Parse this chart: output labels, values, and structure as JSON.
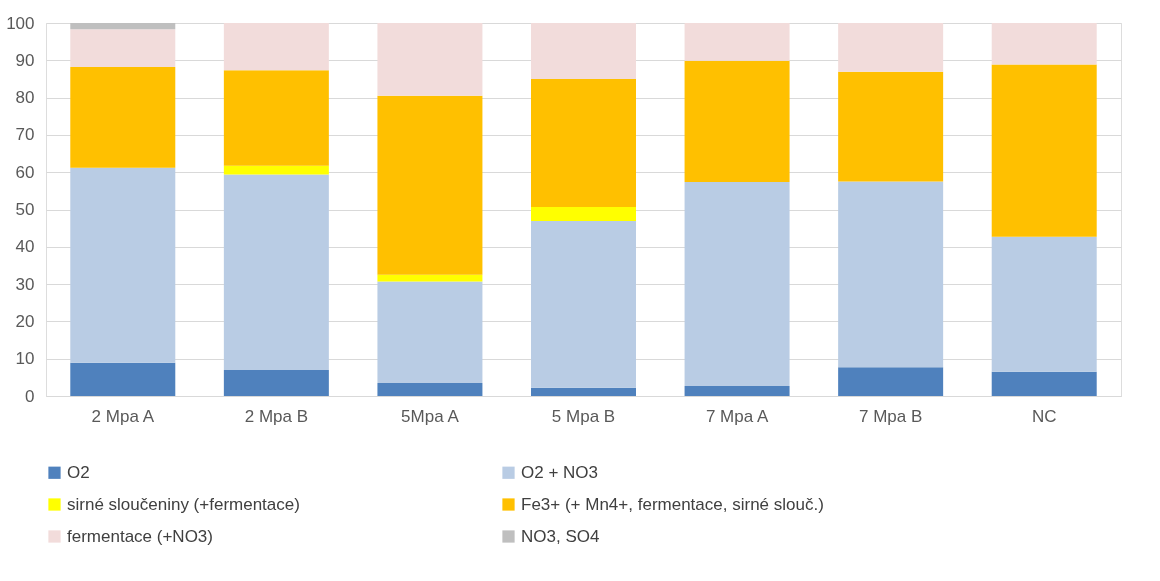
{
  "chart_data": {
    "type": "bar",
    "stacked": true,
    "categories": [
      "2 Mpa A",
      "2 Mpa B",
      "5Mpa A",
      "5 Mpa B",
      "7 Mpa A",
      "7 Mpa B",
      "NC"
    ],
    "series": [
      {
        "name": "O2",
        "color": "#4f81bd",
        "values": [
          8.9,
          7.0,
          3.5,
          2.2,
          2.7,
          7.7,
          6.5
        ]
      },
      {
        "name": "O2 + NO3",
        "color": "#b9cce4",
        "values": [
          52.3,
          52.4,
          27.2,
          44.7,
          54.7,
          49.8,
          36.2
        ]
      },
      {
        "name": "sirné sloučeniny (+fermentace)",
        "color": "#ffff00",
        "values": [
          null,
          2.3,
          1.8,
          3.8,
          null,
          null,
          null
        ]
      },
      {
        "name": "Fe3+ (+ Mn4+, fermentace, sirné slouč.)",
        "color": "#ffc000",
        "values": [
          27.0,
          25.6,
          48.0,
          34.3,
          32.5,
          29.4,
          46.2
        ]
      },
      {
        "name": "fermentace (+NO3)",
        "color": "#f2dcdb",
        "values": [
          10.1,
          12.7,
          19.5,
          15.0,
          10.1,
          13.1,
          11.1
        ]
      },
      {
        "name": "NO3, SO4",
        "color": "#bfbfbf",
        "values": [
          1.7,
          null,
          null,
          null,
          null,
          null,
          null
        ]
      }
    ],
    "ylim": [
      0,
      100
    ],
    "yticks": [
      0,
      10,
      20,
      30,
      40,
      50,
      60,
      70,
      80,
      90,
      100
    ],
    "grid": "y",
    "legend": "bottom"
  }
}
